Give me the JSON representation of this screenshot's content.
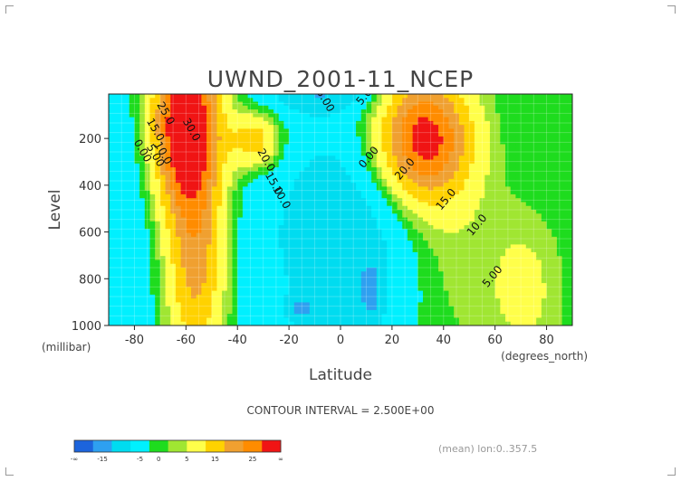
{
  "chart_data": {
    "type": "heatmap",
    "subtype": "filled-contour",
    "title": "UWND_2001-11_NCEP",
    "xlabel": "Latitude",
    "ylabel": "Level",
    "x_unit": "(degrees_north)",
    "y_unit": "(millibar)",
    "xlim": [
      -90,
      90
    ],
    "ylim": [
      1000,
      10
    ],
    "y_inverted": true,
    "x_ticks": [
      -80,
      -60,
      -40,
      -20,
      0,
      20,
      40,
      60,
      80
    ],
    "y_ticks": [
      200,
      400,
      600,
      800,
      1000
    ],
    "grid": true,
    "contour_interval_text": "CONTOUR INTERVAL = 2.500E+00",
    "footnote": "(mean) lon:0..357.5",
    "colorbar": {
      "tick_labels": [
        "-∞",
        "-15",
        "-5",
        "0",
        "5",
        "15",
        "25",
        "∞"
      ],
      "colors": [
        "#1c64dc",
        "#2ea0f0",
        "#00dcf0",
        "#00f0ff",
        "#1edc1e",
        "#a0e632",
        "#ffff4a",
        "#ffd200",
        "#f0a030",
        "#ff8c00",
        "#f01414"
      ],
      "boundaries": [
        -20,
        -15,
        -10,
        -5,
        0,
        2.5,
        5,
        10,
        15,
        20,
        25,
        30
      ]
    },
    "contour_labels": [
      {
        "text": "5.00",
        "x": 11,
        "level": 20
      },
      {
        "text": "5.00",
        "x": -7,
        "level": 45
      },
      {
        "text": "5.00",
        "x": -73,
        "level": 280
      },
      {
        "text": "5.00",
        "x": 60,
        "level": 800
      },
      {
        "text": "0.00",
        "x": -78,
        "level": 260
      },
      {
        "text": "0.00",
        "x": 12,
        "level": 290
      },
      {
        "text": "10.0",
        "x": -70,
        "level": 270
      },
      {
        "text": "10.0",
        "x": -24,
        "level": 460
      },
      {
        "text": "10.0",
        "x": 54,
        "level": 580
      },
      {
        "text": "15.0",
        "x": -73,
        "level": 170
      },
      {
        "text": "15.0",
        "x": -27,
        "level": 400
      },
      {
        "text": "15.0",
        "x": 42,
        "level": 470
      },
      {
        "text": "20.0",
        "x": -30,
        "level": 300
      },
      {
        "text": "20.0",
        "x": 26,
        "level": 340
      },
      {
        "text": "25.0",
        "x": -69,
        "level": 100
      },
      {
        "text": "30.0",
        "x": -59,
        "level": 170
      }
    ]
  }
}
